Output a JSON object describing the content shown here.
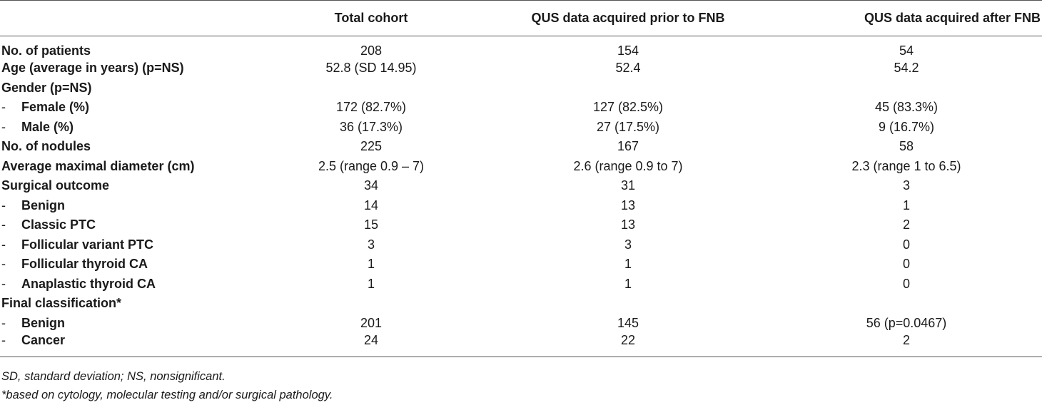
{
  "table": {
    "headers": [
      "",
      "Total cohort",
      "QUS data acquired prior to FNB",
      "QUS data acquired after FNB"
    ],
    "rows": [
      {
        "label": "No. of patients",
        "sub": false,
        "cells": [
          "208",
          "154",
          "54"
        ]
      },
      {
        "label": "Age (average in years) (p=NS)",
        "sub": false,
        "cells": [
          "52.8 (SD 14.95)",
          "52.4",
          "54.2"
        ]
      },
      {
        "label": "Gender (p=NS)",
        "sub": false,
        "cells": [
          "",
          "",
          ""
        ]
      },
      {
        "label": "Female (%)",
        "sub": true,
        "cells": [
          "172 (82.7%)",
          "127 (82.5%)",
          "45 (83.3%)"
        ]
      },
      {
        "label": "Male (%)",
        "sub": true,
        "cells": [
          "36 (17.3%)",
          "27 (17.5%)",
          "9 (16.7%)"
        ]
      },
      {
        "label": "No. of nodules",
        "sub": false,
        "cells": [
          "225",
          "167",
          "58"
        ]
      },
      {
        "label": "Average maximal diameter (cm)",
        "sub": false,
        "cells": [
          "2.5 (range 0.9 – 7)",
          "2.6 (range 0.9 to 7)",
          "2.3 (range 1 to 6.5)"
        ]
      },
      {
        "label": "Surgical outcome",
        "sub": false,
        "cells": [
          "34",
          "31",
          "3"
        ]
      },
      {
        "label": "Benign",
        "sub": true,
        "cells": [
          "14",
          "13",
          "1"
        ]
      },
      {
        "label": "Classic PTC",
        "sub": true,
        "cells": [
          "15",
          "13",
          "2"
        ]
      },
      {
        "label": "Follicular variant PTC",
        "sub": true,
        "cells": [
          "3",
          "3",
          "0"
        ]
      },
      {
        "label": "Follicular thyroid CA",
        "sub": true,
        "cells": [
          "1",
          "1",
          "0"
        ]
      },
      {
        "label": "Anaplastic thyroid CA",
        "sub": true,
        "cells": [
          "1",
          "1",
          "0"
        ]
      },
      {
        "label": "Final classification*",
        "sub": false,
        "cells": [
          "",
          "",
          ""
        ]
      },
      {
        "label": "Benign",
        "sub": true,
        "cells": [
          "201",
          "145",
          "56 (p=0.0467)"
        ]
      },
      {
        "label": "Cancer",
        "sub": true,
        "cells": [
          "24",
          "22",
          "2"
        ]
      }
    ],
    "sub_marker": "-"
  },
  "footnotes": [
    "SD, standard deviation; NS, nonsignificant.",
    "*based on cytology, molecular testing and/or surgical pathology."
  ]
}
